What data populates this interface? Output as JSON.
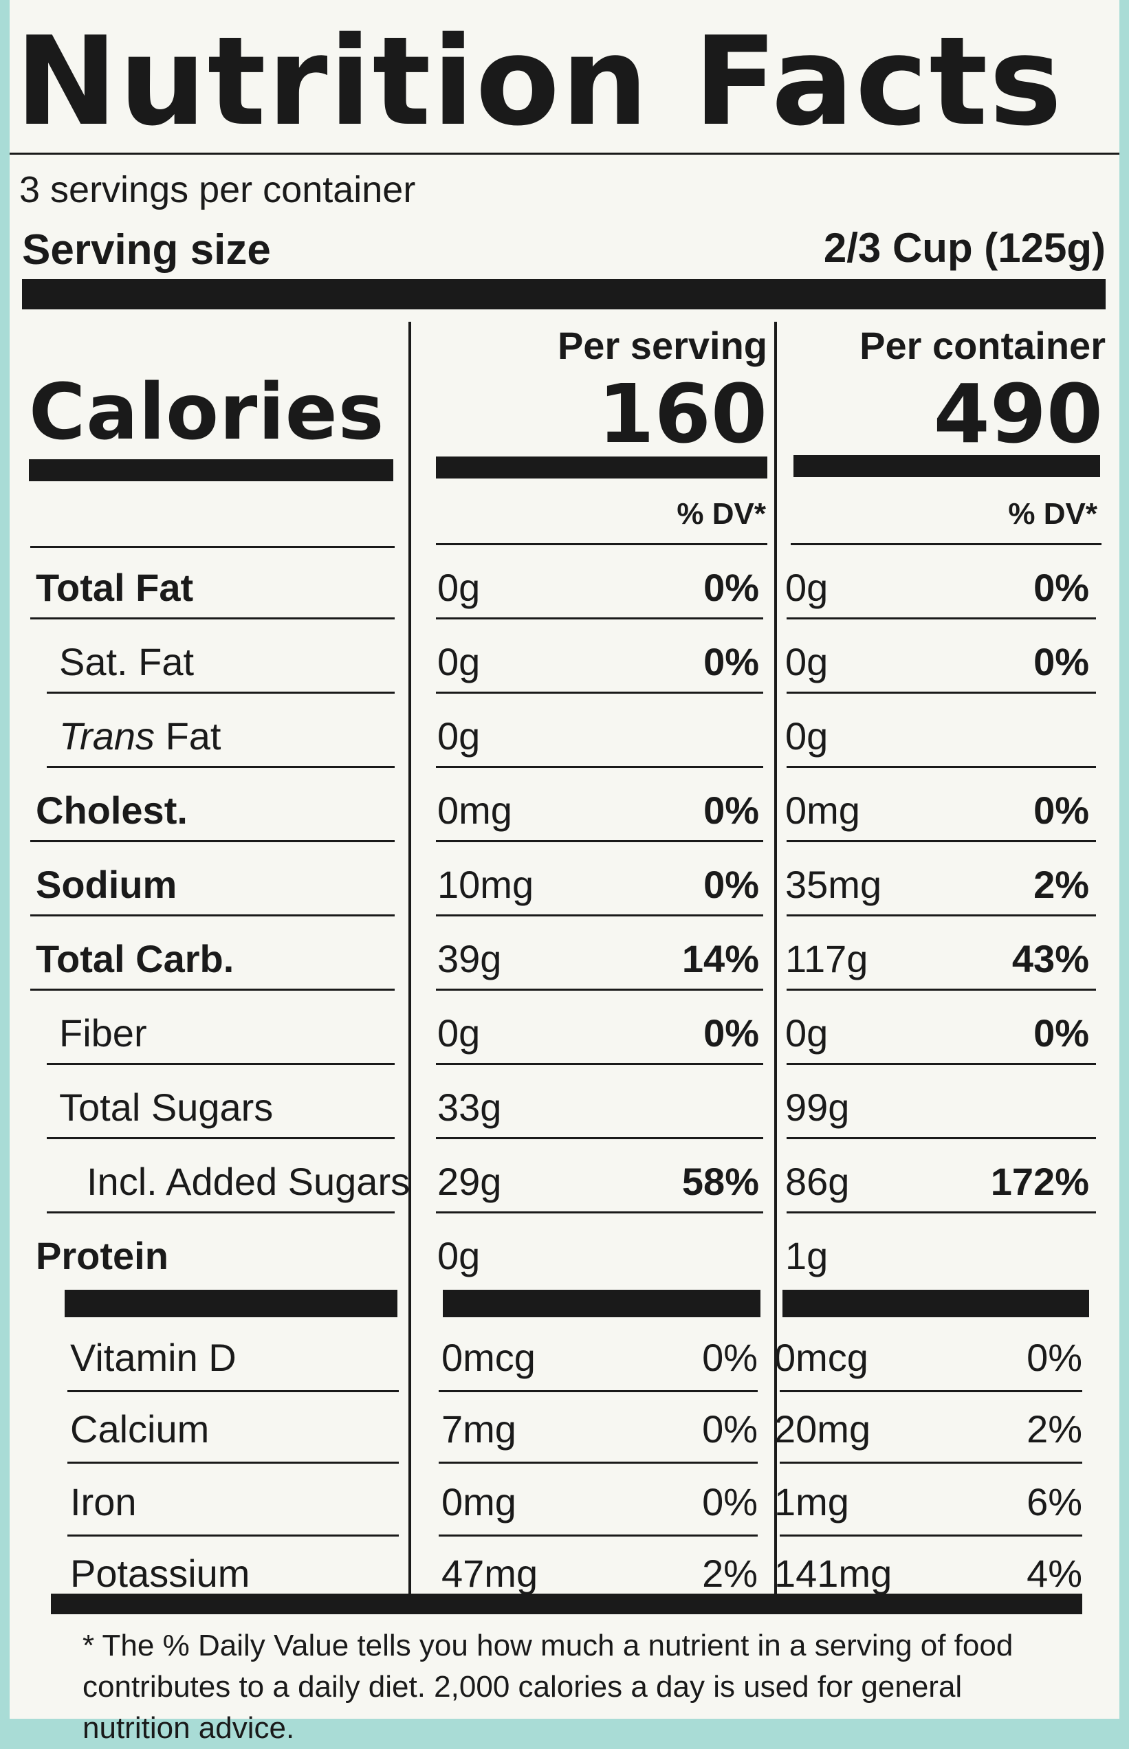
{
  "title": "Nutrition Facts",
  "servings_per_container": "3 servings per container",
  "serving_size": {
    "label": "Serving size",
    "value": "2/3 Cup (125g)"
  },
  "calories": {
    "label": "Calories",
    "per_serving_label": "Per serving",
    "per_serving": "160",
    "per_container_label": "Per container",
    "per_container": "490"
  },
  "dv_header": "% DV*",
  "nutrients": [
    {
      "name": "Total Fat",
      "bold": true,
      "indent": 0,
      "serv": "0g",
      "serv_dv": "0%",
      "cont": "0g",
      "cont_dv": "0%"
    },
    {
      "name": "Sat. Fat",
      "bold": false,
      "indent": 1,
      "serv": "0g",
      "serv_dv": "0%",
      "cont": "0g",
      "cont_dv": "0%"
    },
    {
      "name": "Fat",
      "name_prefix_italic": "Trans",
      "bold": false,
      "indent": 1,
      "serv": "0g",
      "serv_dv": "",
      "cont": "0g",
      "cont_dv": ""
    },
    {
      "name": "Cholest.",
      "bold": true,
      "indent": 0,
      "serv": "0mg",
      "serv_dv": "0%",
      "cont": "0mg",
      "cont_dv": "0%"
    },
    {
      "name": "Sodium",
      "bold": true,
      "indent": 0,
      "serv": "10mg",
      "serv_dv": "0%",
      "cont": "35mg",
      "cont_dv": "2%"
    },
    {
      "name": "Total Carb.",
      "bold": true,
      "indent": 0,
      "serv": "39g",
      "serv_dv": "14%",
      "cont": "117g",
      "cont_dv": "43%"
    },
    {
      "name": "Fiber",
      "bold": false,
      "indent": 1,
      "serv": "0g",
      "serv_dv": "0%",
      "cont": "0g",
      "cont_dv": "0%"
    },
    {
      "name": "Total Sugars",
      "bold": false,
      "indent": 1,
      "serv": "33g",
      "serv_dv": "",
      "cont": "99g",
      "cont_dv": ""
    },
    {
      "name": "Incl. Added Sugars",
      "bold": false,
      "indent": 2,
      "serv": "29g",
      "serv_dv": "58%",
      "cont": "86g",
      "cont_dv": "172%"
    },
    {
      "name": "Protein",
      "bold": true,
      "indent": 0,
      "serv": "0g",
      "serv_dv": "",
      "cont": "1g",
      "cont_dv": ""
    }
  ],
  "vitamins": [
    {
      "name": "Vitamin D",
      "serv": "0mcg",
      "serv_dv": "0%",
      "cont": "0mcg",
      "cont_dv": "0%"
    },
    {
      "name": "Calcium",
      "serv": "7mg",
      "serv_dv": "0%",
      "cont": "20mg",
      "cont_dv": "2%"
    },
    {
      "name": "Iron",
      "serv": "0mg",
      "serv_dv": "0%",
      "cont": "1mg",
      "cont_dv": "6%"
    },
    {
      "name": "Potassium",
      "serv": "47mg",
      "serv_dv": "2%",
      "cont": "141mg",
      "cont_dv": "4%"
    }
  ],
  "footnote": "* The % Daily Value tells you how much a nutrient in a serving of food contributes to a daily diet. 2,000 calories a day is used for general nutrition advice."
}
